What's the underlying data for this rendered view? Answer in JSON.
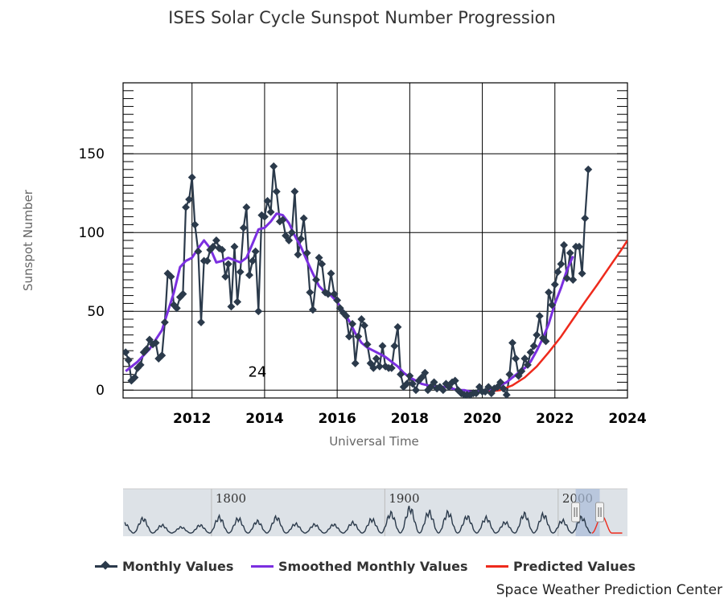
{
  "title": "ISES Solar Cycle Sunspot Number Progression",
  "credit": "Space Weather Prediction Center",
  "colors": {
    "monthly": "#2b3a4b",
    "smoothed": "#7b2fe0",
    "predicted": "#ee2a1c",
    "grid": "#000000",
    "navigator_fill": "#dde2e7",
    "navigator_highlight": "#a9bcd9"
  },
  "chart_data": {
    "type": "line",
    "title": "ISES Solar Cycle Sunspot Number Progression",
    "xlabel": "Universal Time",
    "ylabel": "Sunspot Number",
    "xlim": [
      2010.1,
      2024.0
    ],
    "ylim": [
      -5,
      195
    ],
    "x_ticks": [
      "2012",
      "2014",
      "2016",
      "2018",
      "2020",
      "2022",
      "2024"
    ],
    "y_ticks": [
      "0",
      "50",
      "100",
      "150"
    ],
    "grid": true,
    "legend_position": "bottom",
    "annotations": [
      {
        "text": "24",
        "x": 2013.8,
        "y": 12
      }
    ],
    "series": [
      {
        "name": "Monthly Values",
        "style": "line-with-diamond-markers",
        "points": [
          [
            2010.17,
            24
          ],
          [
            2010.25,
            19
          ],
          [
            2010.33,
            6
          ],
          [
            2010.42,
            8
          ],
          [
            2010.5,
            14
          ],
          [
            2010.58,
            16
          ],
          [
            2010.67,
            24
          ],
          [
            2010.75,
            26
          ],
          [
            2010.83,
            32
          ],
          [
            2010.92,
            29
          ],
          [
            2011.0,
            30
          ],
          [
            2011.08,
            20
          ],
          [
            2011.17,
            22
          ],
          [
            2011.25,
            43
          ],
          [
            2011.33,
            74
          ],
          [
            2011.42,
            72
          ],
          [
            2011.5,
            54
          ],
          [
            2011.58,
            52
          ],
          [
            2011.67,
            59
          ],
          [
            2011.75,
            61
          ],
          [
            2011.83,
            116
          ],
          [
            2011.92,
            121
          ],
          [
            2012.0,
            135
          ],
          [
            2012.08,
            105
          ],
          [
            2012.17,
            88
          ],
          [
            2012.25,
            43
          ],
          [
            2012.33,
            82
          ],
          [
            2012.42,
            82
          ],
          [
            2012.5,
            89
          ],
          [
            2012.58,
            91
          ],
          [
            2012.67,
            95
          ],
          [
            2012.75,
            90
          ],
          [
            2012.83,
            89
          ],
          [
            2012.92,
            72
          ],
          [
            2013.0,
            80
          ],
          [
            2013.08,
            53
          ],
          [
            2013.17,
            91
          ],
          [
            2013.25,
            56
          ],
          [
            2013.33,
            75
          ],
          [
            2013.42,
            103
          ],
          [
            2013.5,
            116
          ],
          [
            2013.58,
            73
          ],
          [
            2013.67,
            82
          ],
          [
            2013.75,
            88
          ],
          [
            2013.83,
            50
          ],
          [
            2013.92,
            111
          ],
          [
            2014.0,
            110
          ],
          [
            2014.08,
            120
          ],
          [
            2014.17,
            113
          ],
          [
            2014.25,
            142
          ],
          [
            2014.33,
            126
          ],
          [
            2014.42,
            107
          ],
          [
            2014.5,
            108
          ],
          [
            2014.58,
            98
          ],
          [
            2014.67,
            95
          ],
          [
            2014.75,
            100
          ],
          [
            2014.83,
            126
          ],
          [
            2014.92,
            86
          ],
          [
            2015.0,
            96
          ],
          [
            2015.08,
            109
          ],
          [
            2015.17,
            87
          ],
          [
            2015.25,
            62
          ],
          [
            2015.33,
            51
          ],
          [
            2015.42,
            70
          ],
          [
            2015.5,
            84
          ],
          [
            2015.58,
            80
          ],
          [
            2015.67,
            62
          ],
          [
            2015.75,
            61
          ],
          [
            2015.83,
            74
          ],
          [
            2015.92,
            61
          ],
          [
            2016.0,
            57
          ],
          [
            2016.08,
            52
          ],
          [
            2016.17,
            49
          ],
          [
            2016.25,
            47
          ],
          [
            2016.33,
            34
          ],
          [
            2016.42,
            42
          ],
          [
            2016.5,
            17
          ],
          [
            2016.58,
            34
          ],
          [
            2016.67,
            45
          ],
          [
            2016.75,
            41
          ],
          [
            2016.83,
            29
          ],
          [
            2016.92,
            17
          ],
          [
            2017.0,
            14
          ],
          [
            2017.08,
            20
          ],
          [
            2017.17,
            15
          ],
          [
            2017.25,
            28
          ],
          [
            2017.33,
            15
          ],
          [
            2017.42,
            14
          ],
          [
            2017.5,
            14
          ],
          [
            2017.58,
            28
          ],
          [
            2017.67,
            40
          ],
          [
            2017.75,
            10
          ],
          [
            2017.83,
            2
          ],
          [
            2017.92,
            4
          ],
          [
            2018.0,
            9
          ],
          [
            2018.08,
            4
          ],
          [
            2018.17,
            0
          ],
          [
            2018.25,
            6
          ],
          [
            2018.33,
            8
          ],
          [
            2018.42,
            11
          ],
          [
            2018.5,
            0
          ],
          [
            2018.58,
            2
          ],
          [
            2018.67,
            5
          ],
          [
            2018.75,
            1
          ],
          [
            2018.83,
            2
          ],
          [
            2018.92,
            0
          ],
          [
            2019.0,
            4
          ],
          [
            2019.08,
            2
          ],
          [
            2019.17,
            5
          ],
          [
            2019.25,
            6
          ],
          [
            2019.33,
            0
          ],
          [
            2019.42,
            -2
          ],
          [
            2019.5,
            -3
          ],
          [
            2019.58,
            -3
          ],
          [
            2019.67,
            -3
          ],
          [
            2019.75,
            -2
          ],
          [
            2019.83,
            -2
          ],
          [
            2019.92,
            2
          ],
          [
            2020.0,
            -1
          ],
          [
            2020.08,
            -1
          ],
          [
            2020.17,
            2
          ],
          [
            2020.25,
            -2
          ],
          [
            2020.33,
            1
          ],
          [
            2020.42,
            2
          ],
          [
            2020.5,
            5
          ],
          [
            2020.58,
            1
          ],
          [
            2020.67,
            -3
          ],
          [
            2020.75,
            10
          ],
          [
            2020.83,
            30
          ],
          [
            2020.92,
            20
          ],
          [
            2021.0,
            9
          ],
          [
            2021.08,
            12
          ],
          [
            2021.17,
            20
          ],
          [
            2021.25,
            16
          ],
          [
            2021.33,
            24
          ],
          [
            2021.42,
            28
          ],
          [
            2021.5,
            35
          ],
          [
            2021.58,
            47
          ],
          [
            2021.67,
            33
          ],
          [
            2021.75,
            31
          ],
          [
            2021.83,
            62
          ],
          [
            2021.92,
            54
          ],
          [
            2022.0,
            67
          ],
          [
            2022.08,
            75
          ],
          [
            2022.17,
            80
          ],
          [
            2022.25,
            92
          ],
          [
            2022.33,
            71
          ],
          [
            2022.42,
            87
          ],
          [
            2022.5,
            70
          ],
          [
            2022.58,
            91
          ],
          [
            2022.67,
            91
          ],
          [
            2022.75,
            74
          ],
          [
            2022.83,
            109
          ],
          [
            2022.92,
            140
          ]
        ]
      },
      {
        "name": "Smoothed Monthly Values",
        "style": "smooth-line",
        "points": [
          [
            2010.17,
            12
          ],
          [
            2010.5,
            18
          ],
          [
            2010.83,
            26
          ],
          [
            2011.17,
            38
          ],
          [
            2011.5,
            62
          ],
          [
            2011.67,
            78
          ],
          [
            2011.83,
            82
          ],
          [
            2012.0,
            84
          ],
          [
            2012.17,
            90
          ],
          [
            2012.33,
            95
          ],
          [
            2012.5,
            90
          ],
          [
            2012.67,
            81
          ],
          [
            2012.83,
            82
          ],
          [
            2013.0,
            84
          ],
          [
            2013.33,
            81
          ],
          [
            2013.5,
            84
          ],
          [
            2013.67,
            93
          ],
          [
            2013.83,
            102
          ],
          [
            2014.0,
            103
          ],
          [
            2014.17,
            107
          ],
          [
            2014.33,
            112
          ],
          [
            2014.5,
            111
          ],
          [
            2014.67,
            106
          ],
          [
            2014.83,
            98
          ],
          [
            2015.0,
            91
          ],
          [
            2015.17,
            82
          ],
          [
            2015.33,
            74
          ],
          [
            2015.5,
            66
          ],
          [
            2015.67,
            62
          ],
          [
            2015.83,
            60
          ],
          [
            2016.0,
            56
          ],
          [
            2016.17,
            50
          ],
          [
            2016.33,
            44
          ],
          [
            2016.5,
            36
          ],
          [
            2016.67,
            30
          ],
          [
            2016.83,
            27
          ],
          [
            2017.0,
            25
          ],
          [
            2017.17,
            23
          ],
          [
            2017.33,
            21
          ],
          [
            2017.5,
            18
          ],
          [
            2017.67,
            15
          ],
          [
            2017.83,
            11
          ],
          [
            2018.0,
            8
          ],
          [
            2018.17,
            6
          ],
          [
            2018.33,
            4
          ],
          [
            2018.5,
            3
          ],
          [
            2018.67,
            2
          ],
          [
            2018.83,
            2
          ],
          [
            2019.0,
            2
          ],
          [
            2019.17,
            1
          ],
          [
            2019.33,
            0
          ],
          [
            2019.5,
            0
          ],
          [
            2019.67,
            -1
          ],
          [
            2019.83,
            -1
          ],
          [
            2020.0,
            -1
          ],
          [
            2020.17,
            0
          ],
          [
            2020.33,
            1
          ],
          [
            2020.5,
            3
          ],
          [
            2020.67,
            5
          ],
          [
            2020.83,
            8
          ],
          [
            2021.0,
            11
          ],
          [
            2021.17,
            14
          ],
          [
            2021.33,
            18
          ],
          [
            2021.5,
            25
          ],
          [
            2021.67,
            33
          ],
          [
            2021.83,
            42
          ],
          [
            2022.0,
            55
          ],
          [
            2022.17,
            65
          ],
          [
            2022.33,
            76
          ],
          [
            2022.5,
            85
          ]
        ]
      },
      {
        "name": "Predicted Values",
        "style": "line",
        "points": [
          [
            2020.17,
            -1
          ],
          [
            2020.5,
            0
          ],
          [
            2020.83,
            3
          ],
          [
            2021.17,
            8
          ],
          [
            2021.5,
            15
          ],
          [
            2021.83,
            24
          ],
          [
            2022.17,
            34
          ],
          [
            2022.5,
            45
          ],
          [
            2022.83,
            56
          ],
          [
            2023.17,
            67
          ],
          [
            2023.5,
            78
          ],
          [
            2023.83,
            89
          ],
          [
            2024.0,
            95
          ]
        ]
      }
    ],
    "navigator": {
      "x_labels": [
        "1800",
        "1900",
        "2000"
      ]
    }
  },
  "legend": [
    {
      "label": "Monthly Values",
      "key": "monthly"
    },
    {
      "label": "Smoothed Monthly Values",
      "key": "smoothed"
    },
    {
      "label": "Predicted Values",
      "key": "predicted"
    }
  ]
}
